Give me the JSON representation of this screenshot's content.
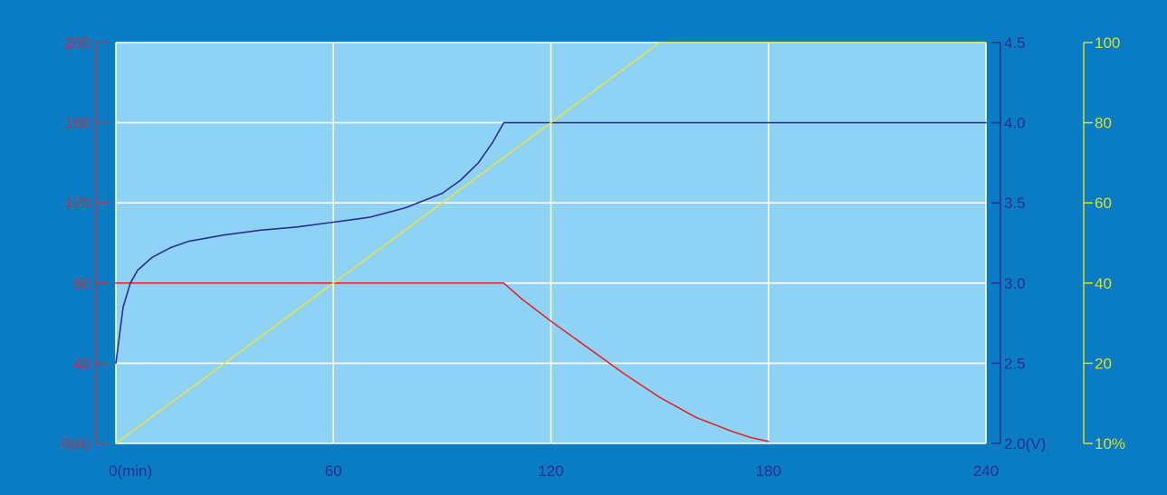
{
  "chart_data": {
    "type": "line",
    "x": {
      "ticks": [
        0,
        60,
        120,
        180,
        240
      ],
      "tick_labels": [
        "0(min)",
        "60",
        "120",
        "180",
        "240"
      ],
      "range": [
        0,
        240
      ]
    },
    "y_left": {
      "ticks": [
        0,
        40,
        80,
        120,
        160,
        200
      ],
      "tick_labels": [
        "0(A)",
        "40",
        "80",
        "120",
        "160",
        "200"
      ],
      "range": [
        0,
        200
      ],
      "color": "#b3364f"
    },
    "y_right1": {
      "ticks": [
        2.0,
        2.5,
        3.0,
        3.5,
        4.0,
        4.5
      ],
      "tick_labels": [
        "2.0(V)",
        "2.5",
        "3.0",
        "3.5",
        "4.0",
        "4.5"
      ],
      "range": [
        2.0,
        4.5
      ],
      "color": "#2a2f8f"
    },
    "y_right2": {
      "ticks": [
        10,
        20,
        40,
        60,
        80,
        100
      ],
      "tick_labels": [
        "10%",
        "20",
        "40",
        "60",
        "80",
        "100"
      ],
      "range": [
        0,
        100
      ],
      "color": "#d9e02a"
    },
    "grid": true,
    "plot_background": "#8ed3f5",
    "series": [
      {
        "axis": "left",
        "color": "#e0262b",
        "points": [
          [
            0,
            80
          ],
          [
            107,
            80
          ],
          [
            112,
            72
          ],
          [
            120,
            61
          ],
          [
            130,
            48
          ],
          [
            140,
            35
          ],
          [
            150,
            23
          ],
          [
            160,
            13
          ],
          [
            170,
            6
          ],
          [
            175,
            3
          ],
          [
            180,
            1
          ]
        ]
      },
      {
        "axis": "right1",
        "color": "#2a2f8f",
        "points": [
          [
            0,
            2.5
          ],
          [
            2,
            2.85
          ],
          [
            4,
            3.0
          ],
          [
            6,
            3.08
          ],
          [
            10,
            3.16
          ],
          [
            15,
            3.22
          ],
          [
            20,
            3.26
          ],
          [
            30,
            3.3
          ],
          [
            40,
            3.33
          ],
          [
            50,
            3.35
          ],
          [
            60,
            3.38
          ],
          [
            70,
            3.41
          ],
          [
            80,
            3.47
          ],
          [
            90,
            3.56
          ],
          [
            95,
            3.64
          ],
          [
            100,
            3.75
          ],
          [
            104,
            3.88
          ],
          [
            107,
            4.0
          ],
          [
            240,
            4.0
          ]
        ]
      },
      {
        "axis": "right2",
        "color": "#e4e44a",
        "points": [
          [
            0,
            0
          ],
          [
            150,
            100
          ],
          [
            240,
            100
          ]
        ]
      }
    ]
  }
}
